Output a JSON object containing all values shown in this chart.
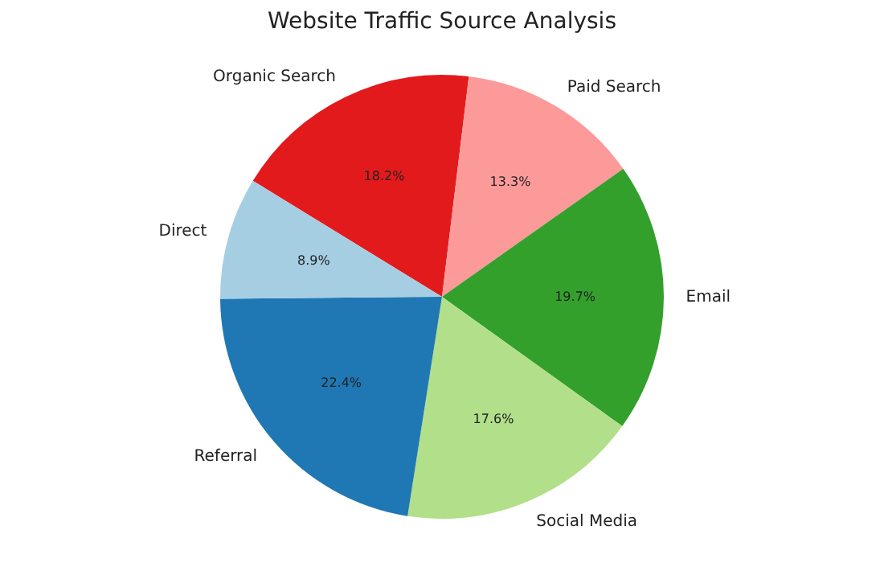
{
  "chart_data": {
    "type": "pie",
    "title": "Website Traffic Source Analysis",
    "categories": [
      "Organic Search",
      "Paid Search",
      "Email",
      "Social Media",
      "Referral",
      "Direct"
    ],
    "values": [
      18.2,
      13.3,
      19.7,
      17.6,
      22.4,
      8.9
    ],
    "value_labels": [
      "18.2%",
      "13.3%",
      "19.7%",
      "17.6%",
      "22.4%",
      "8.9%"
    ],
    "colors": [
      "#e31a1c",
      "#fb9a99",
      "#33a02c",
      "#b2df8a",
      "#1f78b4",
      "#a6cee3"
    ],
    "legend": false
  }
}
